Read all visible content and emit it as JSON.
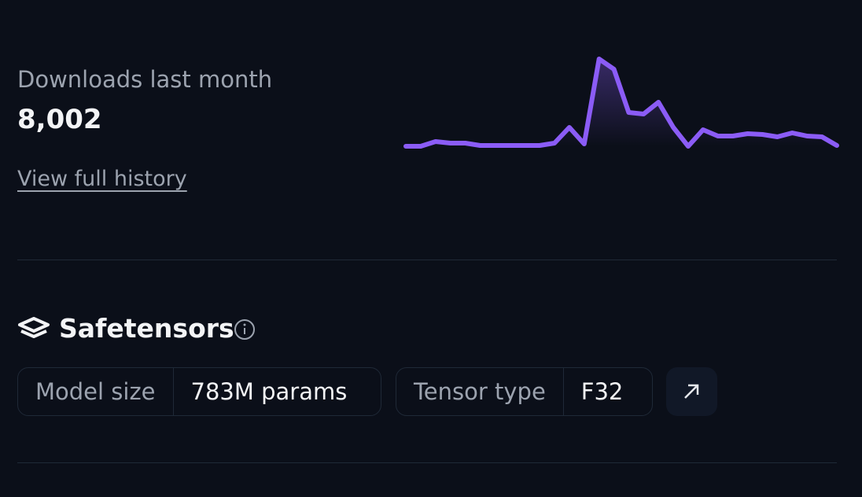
{
  "downloads": {
    "label": "Downloads last month",
    "count": "8,002",
    "history_link": "View full history",
    "sparkline": {
      "type": "line",
      "color": "#8b5cf6",
      "values": [
        0,
        0,
        6,
        4,
        4,
        1,
        1,
        1,
        1,
        1,
        4,
        24,
        3,
        111,
        98,
        43,
        41,
        56,
        24,
        0,
        21,
        13,
        13,
        16,
        15,
        12,
        17,
        13,
        12,
        1
      ]
    }
  },
  "safetensors": {
    "title": "Safetensors",
    "pills": [
      {
        "label": "Model size",
        "value": "783M params"
      },
      {
        "label": "Tensor type",
        "value": "F32"
      }
    ]
  }
}
